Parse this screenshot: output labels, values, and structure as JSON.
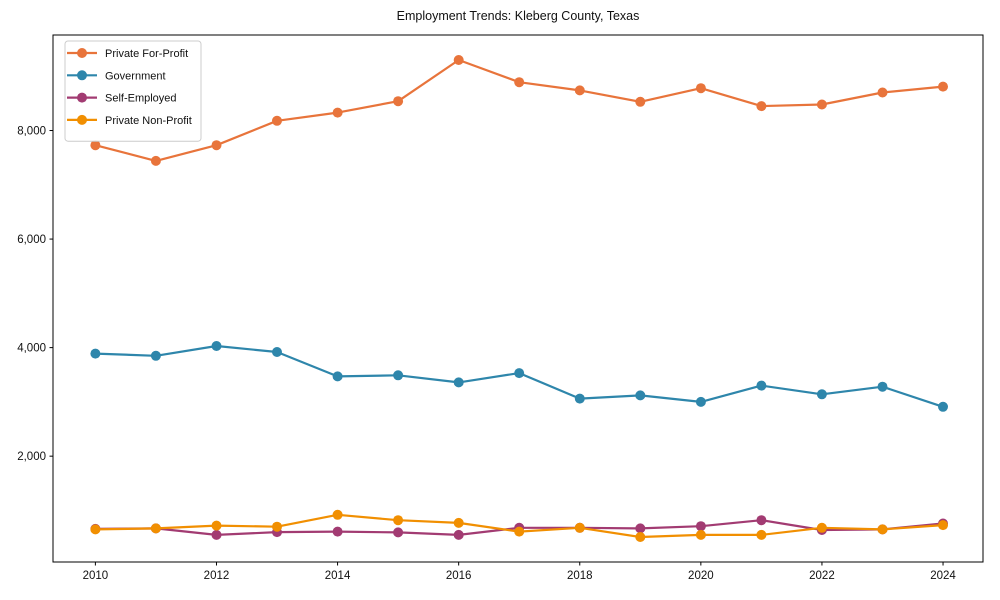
{
  "title": "Employment Trends: Kleberg County, Texas",
  "chart_data": {
    "type": "line",
    "title": "Employment Trends: Kleberg County, Texas",
    "xlabel": "",
    "ylabel": "",
    "x": [
      2010,
      2011,
      2012,
      2013,
      2014,
      2015,
      2016,
      2017,
      2018,
      2019,
      2020,
      2021,
      2022,
      2023,
      2024
    ],
    "series": [
      {
        "name": "Private For-Profit",
        "color": "#E8743B",
        "values": [
          7730,
          7440,
          7730,
          8180,
          8330,
          8540,
          9300,
          8890,
          8740,
          8530,
          8780,
          8450,
          8480,
          8700,
          8810
        ]
      },
      {
        "name": "Government",
        "color": "#2E86AB",
        "values": [
          3890,
          3850,
          4030,
          3920,
          3470,
          3490,
          3360,
          3530,
          3060,
          3120,
          3000,
          3300,
          3140,
          3280,
          2910
        ]
      },
      {
        "name": "Self-Employed",
        "color": "#A23B72",
        "values": [
          660,
          670,
          550,
          600,
          610,
          595,
          550,
          680,
          680,
          670,
          710,
          820,
          640,
          650,
          760
        ]
      },
      {
        "name": "Private Non-Profit",
        "color": "#F18F01",
        "values": [
          650,
          670,
          720,
          700,
          920,
          820,
          770,
          610,
          680,
          510,
          550,
          550,
          680,
          650,
          730
        ]
      }
    ],
    "xticks": [
      2010,
      2012,
      2014,
      2016,
      2018,
      2020,
      2022,
      2024
    ],
    "xtick_labels": [
      "2010",
      "2012",
      "2014",
      "2016",
      "2018",
      "2020",
      "2022",
      "2024"
    ],
    "yticks": [
      2000,
      4000,
      6000,
      8000
    ],
    "ytick_labels": [
      "2,000",
      "4,000",
      "6,000",
      "8,000"
    ],
    "xlim": [
      2009.3,
      2024.66
    ],
    "ylim": [
      50,
      9760
    ],
    "grid": false,
    "legend_position": "upper-left",
    "marker": "circle",
    "plot_bg": "#ffffff",
    "spine_color": "#000000"
  }
}
